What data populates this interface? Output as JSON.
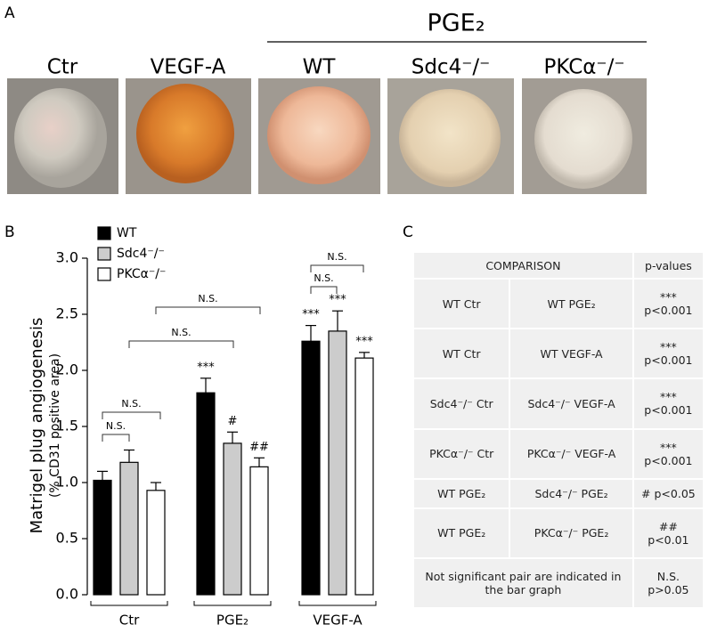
{
  "panel_a": {
    "label": "A",
    "group_header": "PGE₂",
    "images": [
      "Ctr",
      "VEGF-A",
      "WT",
      "Sdc4⁻/⁻",
      "PKCα⁻/⁻"
    ]
  },
  "chart_data": {
    "type": "bar",
    "label": "B",
    "y_label": "Matrigel plug angiogenesis",
    "y_sublabel": "(% CD31 positive area)",
    "categories": [
      "Ctr",
      "PGE₂",
      "VEGF-A"
    ],
    "series": [
      {
        "name": "WT",
        "color": "#000000",
        "values": [
          1.02,
          1.8,
          2.26
        ],
        "errors": [
          0.08,
          0.13,
          0.14
        ]
      },
      {
        "name": "Sdc4⁻/⁻",
        "color": "#cccccc",
        "values": [
          1.18,
          1.35,
          2.35
        ],
        "errors": [
          0.11,
          0.1,
          0.18
        ]
      },
      {
        "name": "PKCα⁻/⁻",
        "color": "#ffffff",
        "values": [
          0.93,
          1.14,
          2.11
        ],
        "errors": [
          0.07,
          0.08,
          0.05
        ]
      }
    ],
    "ylim": [
      0,
      3
    ],
    "yticks": [
      {
        "value": 0,
        "label": "0.0"
      },
      {
        "value": 0.5,
        "label": "0.5"
      },
      {
        "value": 1,
        "label": "1.0"
      },
      {
        "value": 1.5,
        "label": "1.5"
      },
      {
        "value": 2,
        "label": "2.0"
      },
      {
        "value": 2.5,
        "label": "2.5"
      },
      {
        "value": 3,
        "label": "3.0"
      }
    ],
    "annotations": [
      "***",
      "#",
      "##",
      "***",
      "***",
      "***",
      "N.S.",
      "N.S.",
      "N.S.",
      "N.S.",
      "N.S.",
      "N.S."
    ]
  },
  "panel_c": {
    "label": "C",
    "header": [
      "COMPARISON",
      "p-values"
    ],
    "rows": [
      [
        "WT Ctr",
        "WT PGE₂",
        "*** p<0.001"
      ],
      [
        "WT Ctr",
        "WT VEGF-A",
        "*** p<0.001"
      ],
      [
        "Sdc4⁻/⁻ Ctr",
        "Sdc4⁻/⁻ VEGF-A",
        "*** p<0.001"
      ],
      [
        "PKCα⁻/⁻ Ctr",
        "PKCα⁻/⁻ VEGF-A",
        "*** p<0.001"
      ],
      [
        "WT PGE₂",
        "Sdc4⁻/⁻ PGE₂",
        "# p<0.05"
      ],
      [
        "WT PGE₂",
        "PKCα⁻/⁻ PGE₂",
        "## p<0.01"
      ]
    ],
    "footer": [
      "Not significant pair are indicated in the bar graph",
      "N.S. p>0.05"
    ]
  }
}
